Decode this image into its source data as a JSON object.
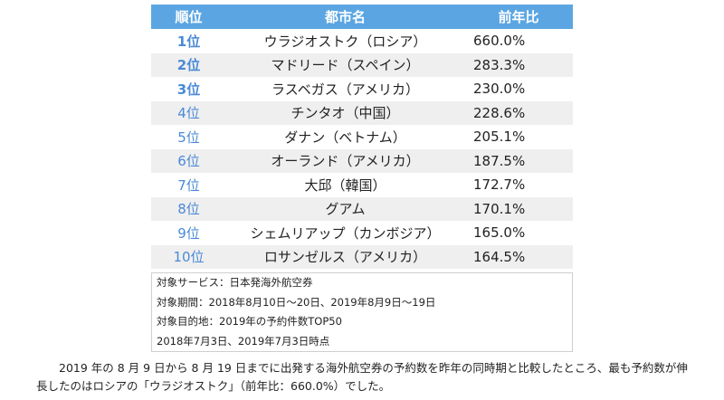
{
  "table": {
    "headers": {
      "rank": "順位",
      "city": "都市名",
      "yoy": "前年比"
    },
    "rows": [
      {
        "rank": "1位",
        "city": "ウラジオストク（ロシア）",
        "yoy": "660.0%"
      },
      {
        "rank": "2位",
        "city": "マドリード（スペイン）",
        "yoy": "283.3%"
      },
      {
        "rank": "3位",
        "city": "ラスベガス（アメリカ）",
        "yoy": "230.0%"
      },
      {
        "rank": "4位",
        "city": "チンタオ（中国）",
        "yoy": "228.6%"
      },
      {
        "rank": "5位",
        "city": "ダナン（ベトナム）",
        "yoy": "205.1%"
      },
      {
        "rank": "6位",
        "city": "オーランド（アメリカ）",
        "yoy": "187.5%"
      },
      {
        "rank": "7位",
        "city": "大邱（韓国）",
        "yoy": "172.7%"
      },
      {
        "rank": "8位",
        "city": "グアム",
        "yoy": "170.1%"
      },
      {
        "rank": "9位",
        "city": "シェムリアップ（カンボジア）",
        "yoy": "165.0%"
      },
      {
        "rank": "10位",
        "city": "ロサンゼルス（アメリカ）",
        "yoy": "164.5%"
      }
    ]
  },
  "notes": [
    "対象サービス：日本発海外航空券",
    "対象期間：2018年8月10日～20日、2019年8月9日～19日",
    "対象目的地：2019年の予約件数TOP50",
    "2018年7月3日、2019年7月3日時点"
  ],
  "summary": "2019 年の 8 月 9 日から 8 月 19 日までに出発する海外航空券の予約数を昨年の同時期と比較したところ、最も予約数が伸長したのはロシアの「ウラジオストク」（前年比：660.0%）でした。",
  "colors": {
    "header_bg": "#5ba6e2",
    "header_text": "#ffffff",
    "rank_text": "#4a8ad6",
    "alt_row_bg": "#efefef"
  }
}
